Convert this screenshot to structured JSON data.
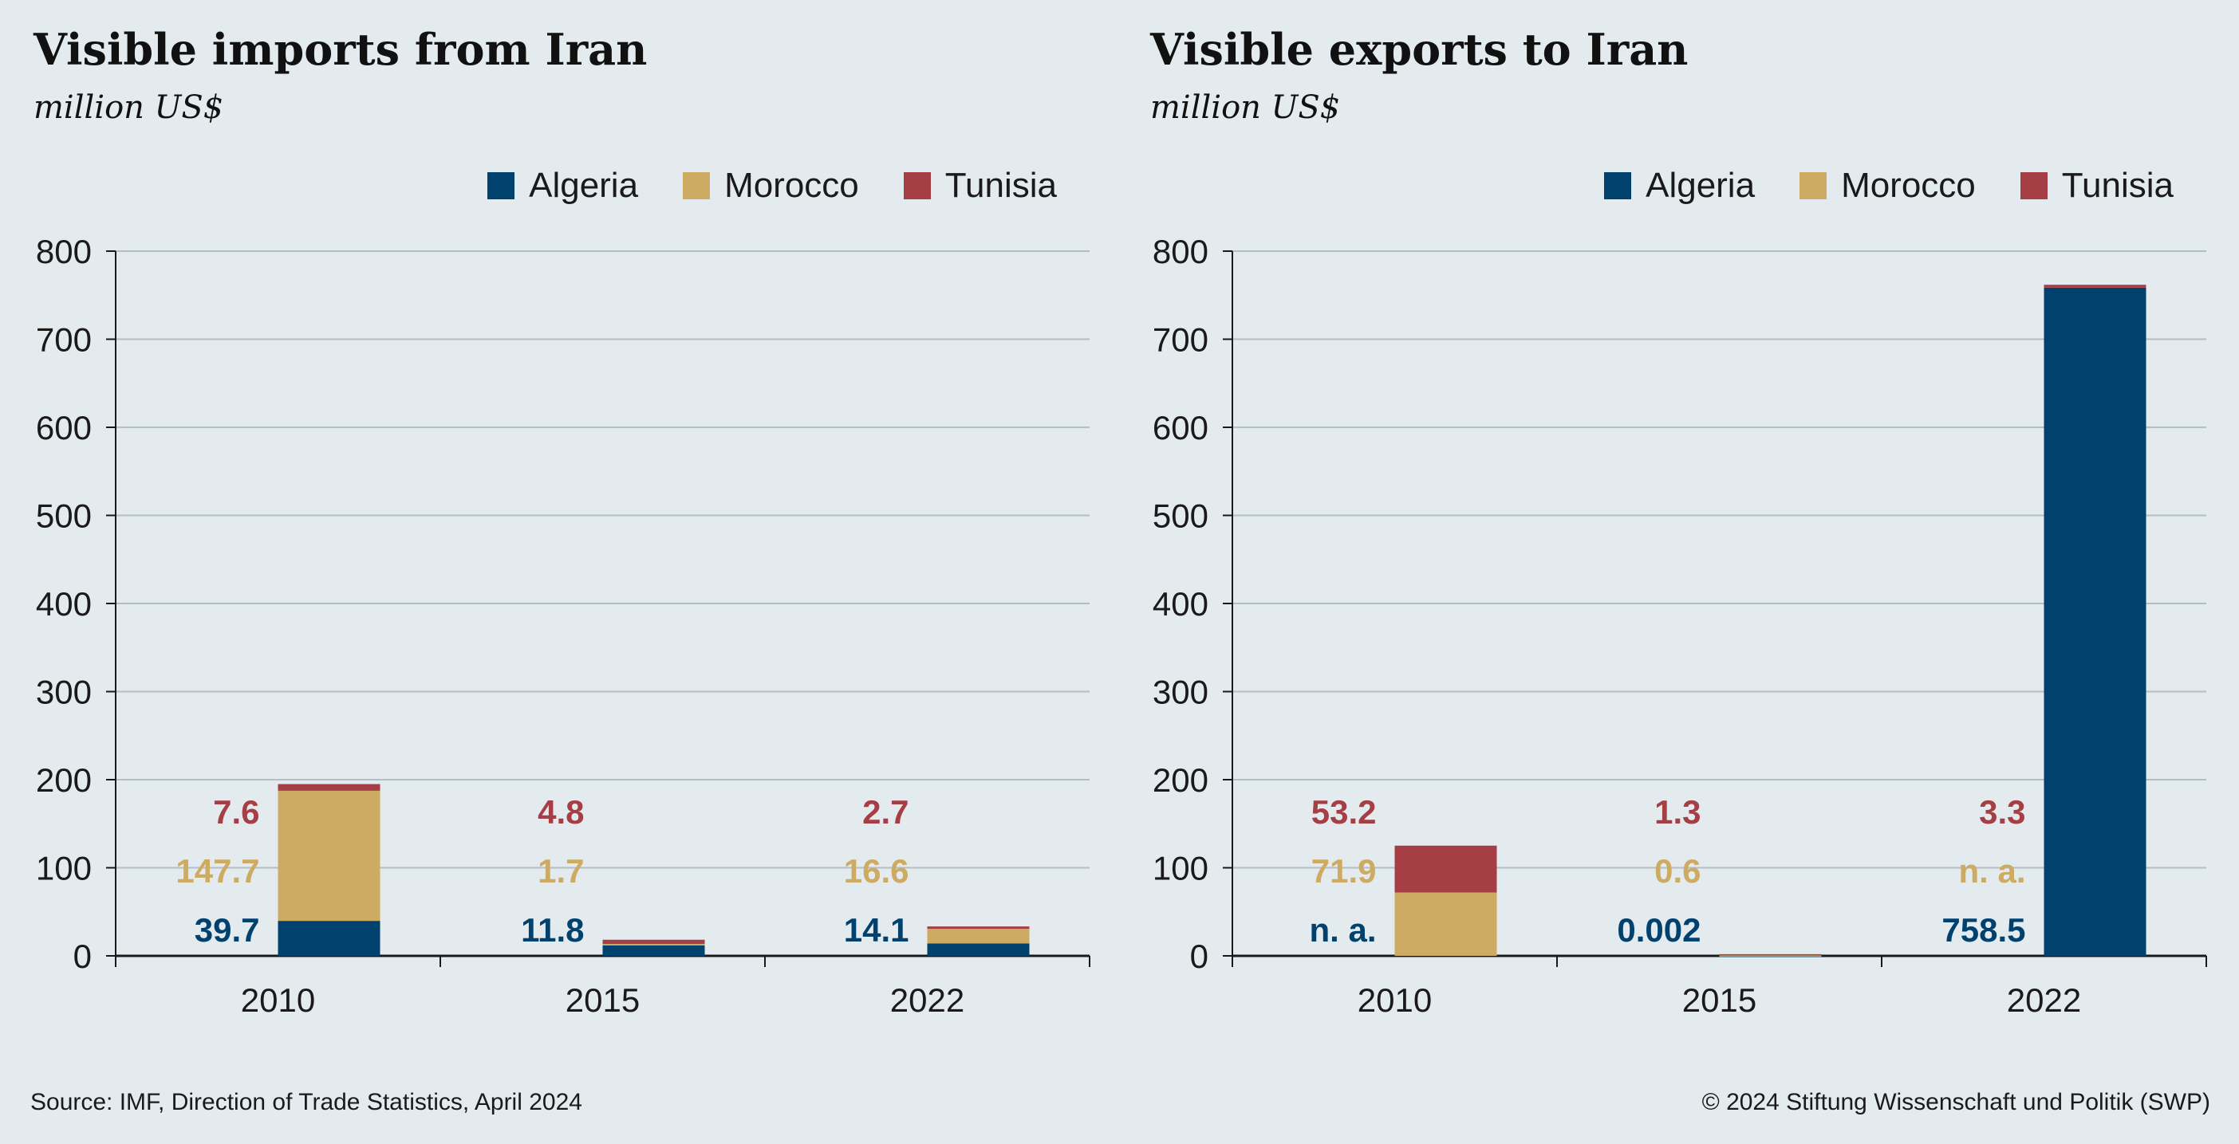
{
  "colors": {
    "algeria": "#00416e",
    "morocco": "#cdab62",
    "tunisia": "#a63f45",
    "grid": "#b5bec3",
    "axis": "#1a1a1a"
  },
  "chart_data": [
    {
      "type": "bar",
      "stacked": true,
      "title": "Visible imports from Iran",
      "subtitle": "million US$",
      "categories": [
        "2010",
        "2015",
        "2022"
      ],
      "ylim": [
        0,
        800
      ],
      "yticks": [
        0,
        100,
        200,
        300,
        400,
        500,
        600,
        700,
        800
      ],
      "grid": true,
      "legend_position": "top-right",
      "series": [
        {
          "name": "Algeria",
          "color_key": "algeria",
          "values": [
            39.7,
            11.8,
            14.1
          ],
          "labels": [
            "39.7",
            "11.8",
            "14.1"
          ]
        },
        {
          "name": "Morocco",
          "color_key": "morocco",
          "values": [
            147.7,
            1.7,
            16.6
          ],
          "labels": [
            "147.7",
            "1.7",
            "16.6"
          ]
        },
        {
          "name": "Tunisia",
          "color_key": "tunisia",
          "values": [
            7.6,
            4.8,
            2.7
          ],
          "labels": [
            "7.6",
            "4.8",
            "2.7"
          ]
        }
      ]
    },
    {
      "type": "bar",
      "stacked": true,
      "title": "Visible exports to Iran",
      "subtitle": "million US$",
      "categories": [
        "2010",
        "2015",
        "2022"
      ],
      "ylim": [
        0,
        800
      ],
      "yticks": [
        0,
        100,
        200,
        300,
        400,
        500,
        600,
        700,
        800
      ],
      "grid": true,
      "legend_position": "top-right",
      "series": [
        {
          "name": "Algeria",
          "color_key": "algeria",
          "values": [
            0,
            0.002,
            758.5
          ],
          "labels": [
            "n. a.",
            "0.002",
            "758.5"
          ]
        },
        {
          "name": "Morocco",
          "color_key": "morocco",
          "values": [
            71.9,
            0.6,
            0
          ],
          "labels": [
            "71.9",
            "0.6",
            "n. a."
          ]
        },
        {
          "name": "Tunisia",
          "color_key": "tunisia",
          "values": [
            53.2,
            1.3,
            3.3
          ],
          "labels": [
            "53.2",
            "1.3",
            "3.3"
          ]
        }
      ]
    }
  ],
  "footer": {
    "source": "Source: IMF, Direction of Trade Statistics, April 2024",
    "copyright": "© 2024 Stiftung Wissenschaft und Politik (SWP)"
  }
}
